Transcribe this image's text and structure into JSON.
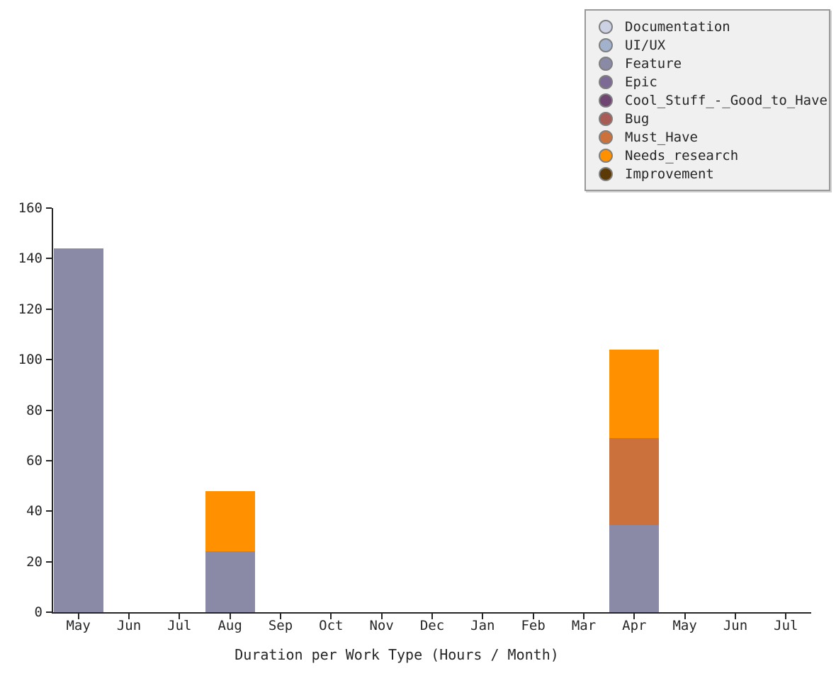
{
  "chart_data": {
    "type": "bar",
    "stacked": true,
    "xlabel": "Duration per Work Type (Hours / Month)",
    "ylabel": "",
    "categories": [
      "May",
      "Jun",
      "Jul",
      "Aug",
      "Sep",
      "Oct",
      "Nov",
      "Dec",
      "Jan",
      "Feb",
      "Mar",
      "Apr",
      "May",
      "Jun",
      "Jul"
    ],
    "ylim": [
      0,
      160
    ],
    "yticks": [
      0,
      20,
      40,
      60,
      80,
      100,
      120,
      140,
      160
    ],
    "grid": false,
    "legend_position": "upper right",
    "legend_marker": "circle",
    "colors": {
      "axis": "#262626",
      "text": "#262626",
      "legend_background": "#f0f0f0",
      "legend_border": "#999999",
      "swatch_border": "#7f7f7f"
    },
    "series": [
      {
        "name": "Documentation",
        "color": "#ccd2e3",
        "values": [
          0,
          0,
          0,
          0,
          0,
          0,
          0,
          0,
          0,
          0,
          0,
          0,
          0,
          0,
          0
        ]
      },
      {
        "name": "UI/UX",
        "color": "#a2b2cd",
        "values": [
          0,
          0,
          0,
          0,
          0,
          0,
          0,
          0,
          0,
          0,
          0,
          0,
          0,
          0,
          0
        ]
      },
      {
        "name": "Feature",
        "color": "#8b8aa6",
        "values": [
          144,
          0,
          0,
          24,
          0,
          0,
          0,
          0,
          0,
          0,
          0,
          34.5,
          0,
          0,
          0
        ]
      },
      {
        "name": "Epic",
        "color": "#7d6b96",
        "values": [
          0,
          0,
          0,
          0,
          0,
          0,
          0,
          0,
          0,
          0,
          0,
          0,
          0,
          0,
          0
        ]
      },
      {
        "name": "Cool_Stuff_-_Good_to_Have",
        "color": "#6f4672",
        "values": [
          0,
          0,
          0,
          0,
          0,
          0,
          0,
          0,
          0,
          0,
          0,
          0,
          0,
          0,
          0
        ]
      },
      {
        "name": "Bug",
        "color": "#a85c55",
        "values": [
          0,
          0,
          0,
          0,
          0,
          0,
          0,
          0,
          0,
          0,
          0,
          0,
          0,
          0,
          0
        ]
      },
      {
        "name": "Must_Have",
        "color": "#cb723c",
        "values": [
          0,
          0,
          0,
          0,
          0,
          0,
          0,
          0,
          0,
          0,
          0,
          34.5,
          0,
          0,
          0
        ]
      },
      {
        "name": "Needs_research",
        "color": "#ff9000",
        "values": [
          0,
          0,
          0,
          24,
          0,
          0,
          0,
          0,
          0,
          0,
          0,
          35,
          0,
          0,
          0
        ]
      },
      {
        "name": "Improvement",
        "color": "#5b3a06",
        "values": [
          0,
          0,
          0,
          0,
          0,
          0,
          0,
          0,
          0,
          0,
          0,
          0,
          0,
          0,
          0
        ]
      }
    ]
  }
}
